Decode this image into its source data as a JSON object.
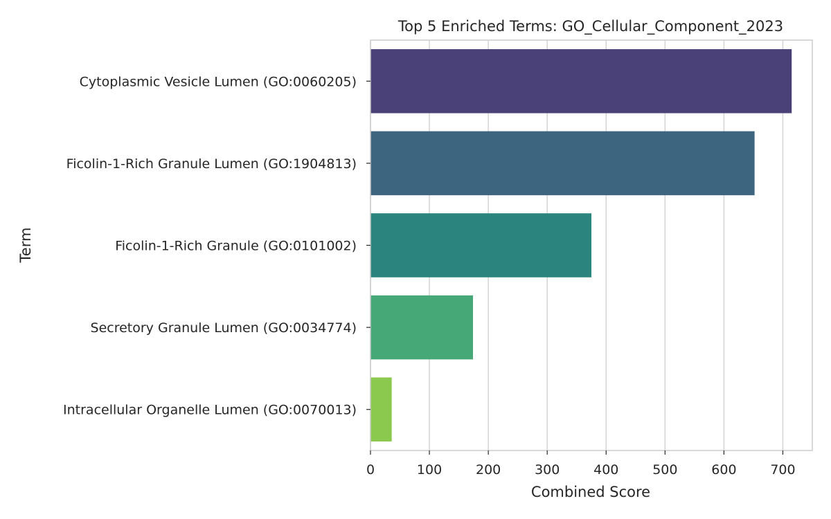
{
  "chart_data": {
    "type": "bar",
    "orientation": "horizontal",
    "title": "Top 5 Enriched Terms: GO_Cellular_Component_2023",
    "xlabel": "Combined Score",
    "ylabel": "Term",
    "xlim": [
      0,
      750
    ],
    "xticks": [
      0,
      100,
      200,
      300,
      400,
      500,
      600,
      700
    ],
    "grid": true,
    "categories": [
      "Cytoplasmic Vesicle Lumen (GO:0060205)",
      "Ficolin-1-Rich Granule Lumen (GO:1904813)",
      "Ficolin-1-Rich Granule (GO:0101002)",
      "Secretory Granule Lumen (GO:0034774)",
      "Intracellular Organelle Lumen (GO:0070013)"
    ],
    "values": [
      715,
      652,
      375,
      174,
      36
    ],
    "colors": [
      "#4b4179",
      "#3d6580",
      "#2c847e",
      "#45a876",
      "#8bc94e"
    ]
  }
}
